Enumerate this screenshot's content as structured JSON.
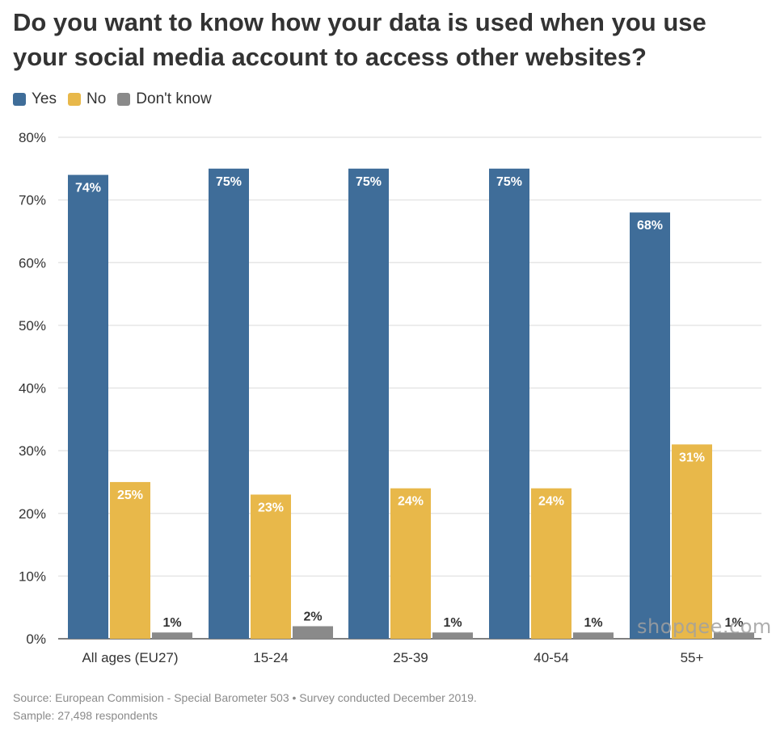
{
  "title": "Do you want to know how your data is used when you use your social media account to access other websites?",
  "legend": [
    {
      "label": "Yes",
      "color": "#3f6d99"
    },
    {
      "label": "No",
      "color": "#e8b84a"
    },
    {
      "label": "Don't know",
      "color": "#8a8a8a"
    }
  ],
  "source_line1": "Source: European Commision - Special Barometer 503 • Survey conducted December 2019.",
  "source_line2": "Sample: 27,498 respondents",
  "watermark": "shopqee.com",
  "chart_data": {
    "type": "bar",
    "title": "Do you want to know how your data is used when you use your social media account to access other websites?",
    "categories": [
      "All ages (EU27)",
      "15-24",
      "25-39",
      "40-54",
      "55+"
    ],
    "series": [
      {
        "name": "Yes",
        "values": [
          74,
          75,
          75,
          75,
          68
        ],
        "color": "#3f6d99"
      },
      {
        "name": "No",
        "values": [
          25,
          23,
          24,
          24,
          31
        ],
        "color": "#e8b84a"
      },
      {
        "name": "Don't know",
        "values": [
          1,
          2,
          1,
          1,
          1
        ],
        "color": "#8a8a8a"
      }
    ],
    "ylim": [
      0,
      80
    ],
    "yticks": [
      0,
      10,
      20,
      30,
      40,
      50,
      60,
      70,
      80
    ],
    "ytick_format": "%",
    "grid": true,
    "legend_position": "top-left"
  }
}
